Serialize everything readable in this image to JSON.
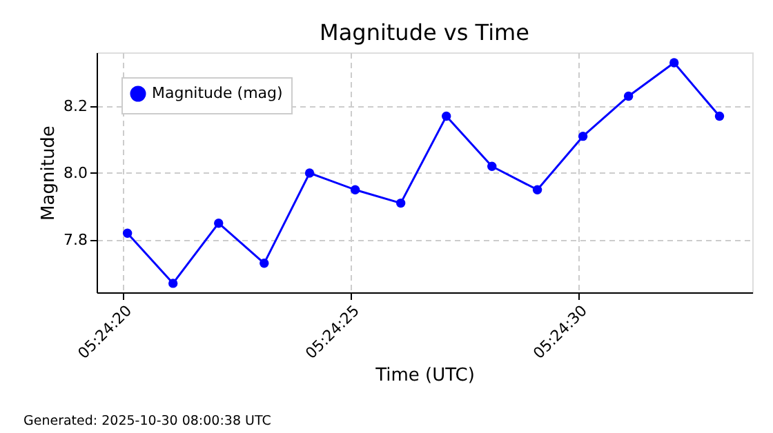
{
  "chart_data": {
    "type": "line",
    "title": "Magnitude vs Time",
    "xlabel": "Time (UTC)",
    "ylabel": "Magnitude",
    "x": [
      5.405583,
      5.405861,
      5.406139,
      5.406417,
      5.406694,
      5.406972,
      5.40725,
      5.407528,
      5.407806,
      5.408083,
      5.408361,
      5.408639,
      5.408917,
      5.409194
    ],
    "series": [
      {
        "name": "Magnitude (mag)",
        "color": "#0000ff",
        "values": [
          7.82,
          7.67,
          7.85,
          7.73,
          8.0,
          7.95,
          7.91,
          8.17,
          8.02,
          7.95,
          8.11,
          8.23,
          8.33,
          8.17
        ]
      }
    ],
    "xlim": [
      5.405395,
      5.409394
    ],
    "xticks": [
      {
        "value": 5.405556,
        "label": "05:24:20"
      },
      {
        "value": 5.406944,
        "label": "05:24:25"
      },
      {
        "value": 5.408333,
        "label": "05:24:30"
      }
    ],
    "ylim": [
      7.643,
      8.361
    ],
    "yticks": [
      7.8,
      {
        "value": 8.0,
        "label": "8.0"
      },
      8.2
    ],
    "grid": true,
    "legend": "top left",
    "marker": "circle",
    "line_style": "solid",
    "annotations": [
      "Generated: 2025-10-30 08:00:38 UTC"
    ]
  }
}
